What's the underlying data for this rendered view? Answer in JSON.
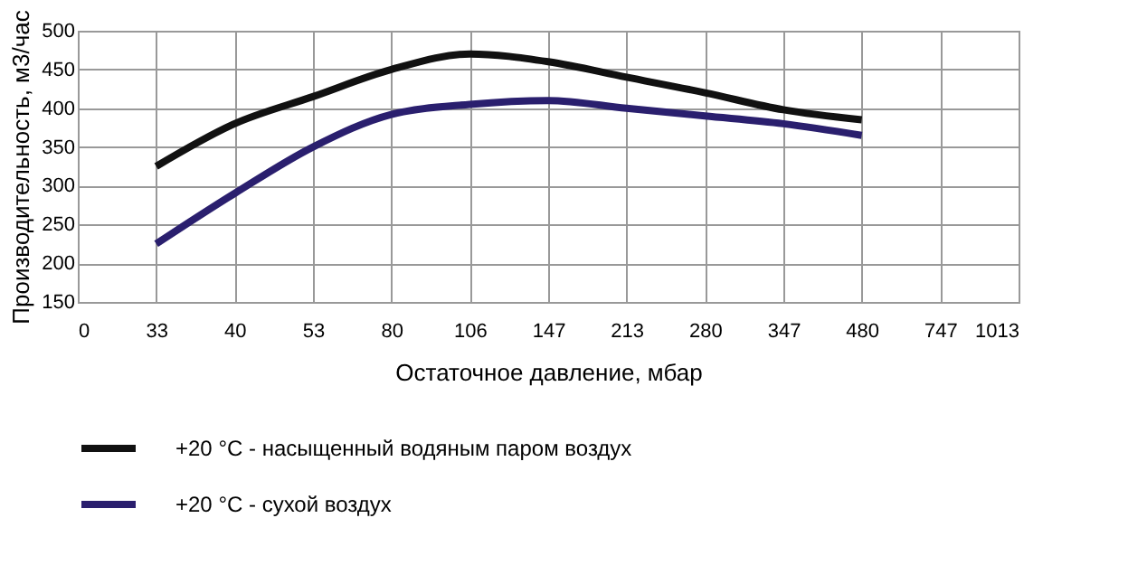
{
  "chart_data": {
    "type": "line",
    "xlabel": "Остаточное давление, мбар",
    "ylabel": "Производительность, м3/час",
    "categories": [
      "0",
      "33",
      "40",
      "53",
      "80",
      "106",
      "147",
      "213",
      "280",
      "347",
      "480",
      "747",
      "1013"
    ],
    "series": [
      {
        "name": "+20 °C - насыщенный водяным паром воздух",
        "color": "#111111",
        "values": [
          null,
          325,
          380,
          415,
          450,
          470,
          460,
          440,
          420,
          398,
          385,
          null,
          null
        ]
      },
      {
        "name": "+20 °C - сухой воздух",
        "color": "#2a1f6e",
        "values": [
          null,
          225,
          290,
          350,
          392,
          405,
          410,
          400,
          390,
          380,
          365,
          null,
          null
        ]
      }
    ],
    "ylim": [
      150,
      500
    ],
    "yticks": [
      150,
      200,
      250,
      300,
      350,
      400,
      450,
      500
    ],
    "grid": true,
    "legend": "bottom left",
    "marker": "none",
    "line_style": "solid"
  }
}
